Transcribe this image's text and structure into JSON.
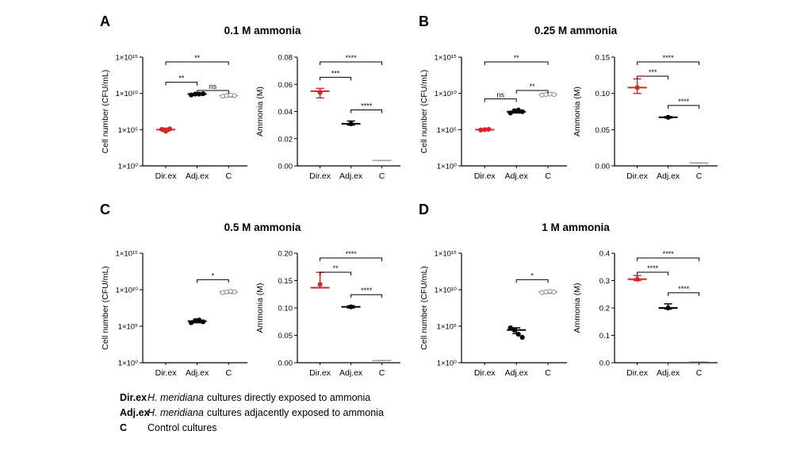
{
  "panels": [
    {
      "letter": "A",
      "title": "0.1 M ammonia"
    },
    {
      "letter": "B",
      "title": "0.25 M ammonia"
    },
    {
      "letter": "C",
      "title": "0.5 M ammonia"
    },
    {
      "letter": "D",
      "title": "1 M ammonia"
    }
  ],
  "legend": [
    {
      "key": "Dir.ex",
      "species": "H. meridiana",
      "text": "cultures directly exposed to ammonia"
    },
    {
      "key": "Adj.ex",
      "species": "H. meridiana",
      "text": "cultures adjacently exposed to ammonia"
    },
    {
      "key": "C",
      "species": "",
      "text": "Control cultures"
    }
  ],
  "colors": {
    "dir_ex": "#d62728",
    "adj_ex": "#000000",
    "control": "#8c8c8c"
  },
  "chart_data": [
    {
      "panel": "A",
      "kind": "cell",
      "type": "scatter",
      "ylabel": "Cell number (CFU/mL)",
      "yscale": "log",
      "ylim": [
        1,
        1000000000000000.0
      ],
      "yticks": [
        {
          "v": 1,
          "t": "1×10⁰"
        },
        {
          "v": 100000,
          "t": "1×10⁵"
        },
        {
          "v": 10000000000.0,
          "t": "1×10¹⁰"
        },
        {
          "v": 1000000000000000.0,
          "t": "1×10¹⁵"
        }
      ],
      "categories": [
        "Dir.ex",
        "Adj.ex",
        "C"
      ],
      "groups": [
        {
          "cat": "Dir.ex",
          "mean": 100000,
          "err": [
            60000,
            160000
          ],
          "points": [
            110000,
            60000,
            130000
          ]
        },
        {
          "cat": "Adj.ex",
          "mean": 8000000000.0,
          "err": [
            6000000000.0,
            10000000000.0
          ],
          "points": [
            6000000000.0,
            8000000000.0,
            8000000000.0,
            9000000000.0
          ]
        },
        {
          "cat": "C",
          "mean": 5000000000.0,
          "err": [
            3000000000.0,
            7000000000.0
          ],
          "points": [
            4000000000.0,
            5000000000.0,
            6000000000.0,
            5000000000.0
          ]
        }
      ],
      "brackets": [
        {
          "from": "Dir.ex",
          "to": "C",
          "label": "**"
        },
        {
          "from": "Dir.ex",
          "to": "Adj.ex",
          "label": "**"
        },
        {
          "from": "Adj.ex",
          "to": "C",
          "label": "ns"
        }
      ]
    },
    {
      "panel": "A",
      "kind": "ammonia",
      "type": "scatter",
      "ylabel": "Ammonia (M)",
      "yscale": "linear",
      "ylim": [
        0,
        0.08
      ],
      "yticks": [
        {
          "v": 0,
          "t": "0.00"
        },
        {
          "v": 0.02,
          "t": "0.02"
        },
        {
          "v": 0.04,
          "t": "0.04"
        },
        {
          "v": 0.06,
          "t": "0.06"
        },
        {
          "v": 0.08,
          "t": "0.08"
        }
      ],
      "categories": [
        "Dir.ex",
        "Adj.ex",
        "C"
      ],
      "groups": [
        {
          "cat": "Dir.ex",
          "mean": 0.055,
          "err": [
            0.05,
            0.057
          ],
          "points": [
            0.054
          ]
        },
        {
          "cat": "Adj.ex",
          "mean": 0.031,
          "err": [
            0.03,
            0.033
          ],
          "points": [
            0.031
          ]
        },
        {
          "cat": "C",
          "mean": 0.004,
          "err": [
            0.004,
            0.004
          ],
          "points": []
        }
      ],
      "brackets": [
        {
          "from": "Dir.ex",
          "to": "C",
          "label": "****"
        },
        {
          "from": "Dir.ex",
          "to": "Adj.ex",
          "label": "***"
        },
        {
          "from": "Adj.ex",
          "to": "C",
          "label": "****"
        }
      ]
    },
    {
      "panel": "B",
      "kind": "cell",
      "type": "scatter",
      "ylabel": "Cell number (CFU/mL)",
      "yscale": "log",
      "ylim": [
        1,
        1000000000000000.0
      ],
      "yticks": [
        {
          "v": 1,
          "t": "1×10⁰"
        },
        {
          "v": 100000,
          "t": "1×10⁵"
        },
        {
          "v": 10000000000.0,
          "t": "1×10¹⁰"
        },
        {
          "v": 1000000000000000.0,
          "t": "1×10¹⁵"
        }
      ],
      "categories": [
        "Dir.ex",
        "Adj.ex",
        "C"
      ],
      "groups": [
        {
          "cat": "Dir.ex",
          "mean": 100000,
          "err": [
            80000,
            120000
          ],
          "points": [
            90000,
            100000,
            110000
          ]
        },
        {
          "cat": "Adj.ex",
          "mean": 30000000.0,
          "err": [
            20000000.0,
            50000000.0
          ],
          "points": [
            20000000.0,
            40000000.0,
            50000000.0,
            30000000.0
          ]
        },
        {
          "cat": "C",
          "mean": 7000000000.0,
          "err": [
            5000000000.0,
            9000000000.0
          ],
          "points": [
            6000000000.0,
            7000000000.0,
            8000000000.0,
            7000000000.0
          ]
        }
      ],
      "brackets": [
        {
          "from": "Dir.ex",
          "to": "C",
          "label": "**"
        },
        {
          "from": "Dir.ex",
          "to": "Adj.ex",
          "label": "ns"
        },
        {
          "from": "Adj.ex",
          "to": "C",
          "label": "**"
        }
      ]
    },
    {
      "panel": "B",
      "kind": "ammonia",
      "type": "scatter",
      "ylabel": "Ammonia (M)",
      "yscale": "linear",
      "ylim": [
        0,
        0.15
      ],
      "yticks": [
        {
          "v": 0,
          "t": "0.00"
        },
        {
          "v": 0.05,
          "t": "0.05"
        },
        {
          "v": 0.1,
          "t": "0.10"
        },
        {
          "v": 0.15,
          "t": "0.15"
        }
      ],
      "categories": [
        "Dir.ex",
        "Adj.ex",
        "C"
      ],
      "groups": [
        {
          "cat": "Dir.ex",
          "mean": 0.108,
          "err": [
            0.1,
            0.12
          ],
          "points": [
            0.108
          ]
        },
        {
          "cat": "Adj.ex",
          "mean": 0.067,
          "err": [
            0.066,
            0.068
          ],
          "points": [
            0.067
          ]
        },
        {
          "cat": "C",
          "mean": 0.004,
          "err": [
            0.004,
            0.004
          ],
          "points": []
        }
      ],
      "brackets": [
        {
          "from": "Dir.ex",
          "to": "C",
          "label": "****"
        },
        {
          "from": "Dir.ex",
          "to": "Adj.ex",
          "label": "***"
        },
        {
          "from": "Adj.ex",
          "to": "C",
          "label": "****"
        }
      ]
    },
    {
      "panel": "C",
      "kind": "cell",
      "type": "scatter",
      "ylabel": "Cell number (CFU/mL)",
      "yscale": "log",
      "ylim": [
        1,
        1000000000000000.0
      ],
      "yticks": [
        {
          "v": 1,
          "t": "1×10⁰"
        },
        {
          "v": 100000,
          "t": "1×10⁵"
        },
        {
          "v": 10000000000.0,
          "t": "1×10¹⁰"
        },
        {
          "v": 1000000000000000.0,
          "t": "1×10¹⁵"
        }
      ],
      "categories": [
        "Dir.ex",
        "Adj.ex",
        "C"
      ],
      "groups": [
        {
          "cat": "Adj.ex",
          "mean": 500000,
          "err": [
            300000,
            700000
          ],
          "points": [
            300000,
            600000,
            700000,
            400000
          ]
        },
        {
          "cat": "C",
          "mean": 5000000000.0,
          "err": [
            3000000000.0,
            7000000000.0
          ],
          "points": [
            4000000000.0,
            5000000000.0,
            6000000000.0,
            5000000000.0
          ]
        }
      ],
      "brackets": [
        {
          "from": "Adj.ex",
          "to": "C",
          "label": "*"
        }
      ]
    },
    {
      "panel": "C",
      "kind": "ammonia",
      "type": "scatter",
      "ylabel": "Ammonia (M)",
      "yscale": "linear",
      "ylim": [
        0,
        0.2
      ],
      "yticks": [
        {
          "v": 0,
          "t": "0.00"
        },
        {
          "v": 0.05,
          "t": "0.05"
        },
        {
          "v": 0.1,
          "t": "0.10"
        },
        {
          "v": 0.15,
          "t": "0.15"
        },
        {
          "v": 0.2,
          "t": "0.20"
        }
      ],
      "categories": [
        "Dir.ex",
        "Adj.ex",
        "C"
      ],
      "groups": [
        {
          "cat": "Dir.ex",
          "mean": 0.137,
          "err": [
            0.137,
            0.165
          ],
          "points": [
            0.143
          ]
        },
        {
          "cat": "Adj.ex",
          "mean": 0.102,
          "err": [
            0.1,
            0.104
          ],
          "points": [
            0.102
          ]
        },
        {
          "cat": "C",
          "mean": 0.004,
          "err": [
            0.004,
            0.004
          ],
          "points": []
        }
      ],
      "brackets": [
        {
          "from": "Dir.ex",
          "to": "C",
          "label": "****"
        },
        {
          "from": "Dir.ex",
          "to": "Adj.ex",
          "label": "**"
        },
        {
          "from": "Adj.ex",
          "to": "C",
          "label": "****"
        }
      ]
    },
    {
      "panel": "D",
      "kind": "cell",
      "type": "scatter",
      "ylabel": "Cell number (CFU/mL)",
      "yscale": "log",
      "ylim": [
        1,
        1000000000000000.0
      ],
      "yticks": [
        {
          "v": 1,
          "t": "1×10⁰"
        },
        {
          "v": 100000,
          "t": "1×10⁵"
        },
        {
          "v": 10000000000.0,
          "t": "1×10¹⁰"
        },
        {
          "v": 1000000000000000.0,
          "t": "1×10¹⁵"
        }
      ],
      "categories": [
        "Dir.ex",
        "Adj.ex",
        "C"
      ],
      "groups": [
        {
          "cat": "Adj.ex",
          "mean": 30000,
          "err": [
            10000,
            60000
          ],
          "points": [
            60000,
            30000,
            8000,
            3000
          ]
        },
        {
          "cat": "C",
          "mean": 5000000000.0,
          "err": [
            3000000000.0,
            7000000000.0
          ],
          "points": [
            4000000000.0,
            5000000000.0,
            6000000000.0,
            5000000000.0
          ]
        }
      ],
      "brackets": [
        {
          "from": "Adj.ex",
          "to": "C",
          "label": "*"
        }
      ]
    },
    {
      "panel": "D",
      "kind": "ammonia",
      "type": "scatter",
      "ylabel": "Ammonia (M)",
      "yscale": "linear",
      "ylim": [
        0,
        0.4
      ],
      "yticks": [
        {
          "v": 0,
          "t": "0.0"
        },
        {
          "v": 0.1,
          "t": "0.1"
        },
        {
          "v": 0.2,
          "t": "0.2"
        },
        {
          "v": 0.3,
          "t": "0.3"
        },
        {
          "v": 0.4,
          "t": "0.4"
        }
      ],
      "categories": [
        "Dir.ex",
        "Adj.ex",
        "C"
      ],
      "groups": [
        {
          "cat": "Dir.ex",
          "mean": 0.305,
          "err": [
            0.3,
            0.318
          ],
          "points": [
            0.305
          ]
        },
        {
          "cat": "Adj.ex",
          "mean": 0.2,
          "err": [
            0.196,
            0.215
          ],
          "points": [
            0.2
          ]
        },
        {
          "cat": "C",
          "mean": 0.003,
          "err": [
            0.003,
            0.003
          ],
          "points": []
        }
      ],
      "brackets": [
        {
          "from": "Dir.ex",
          "to": "C",
          "label": "****"
        },
        {
          "from": "Dir.ex",
          "to": "Adj.ex",
          "label": "****"
        },
        {
          "from": "Adj.ex",
          "to": "C",
          "label": "****"
        }
      ]
    }
  ]
}
